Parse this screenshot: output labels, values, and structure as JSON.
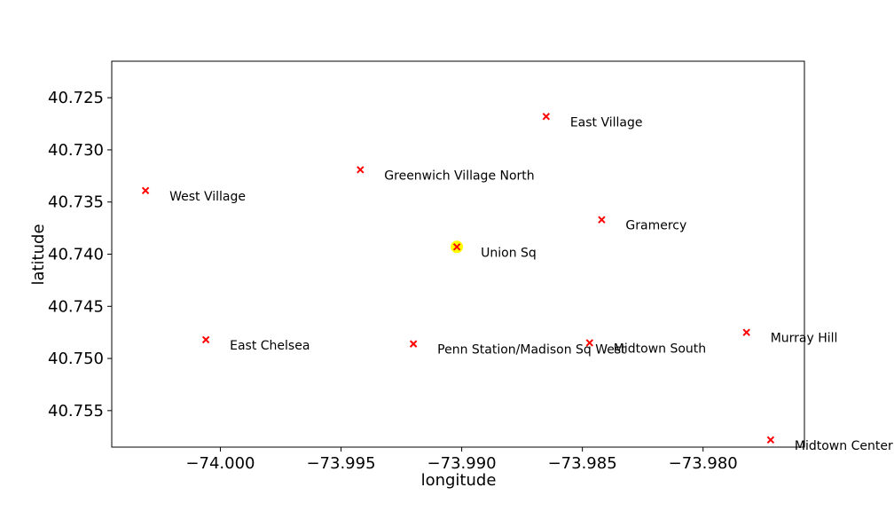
{
  "chart_data": {
    "type": "scatter",
    "title": "",
    "xlabel": "longitude",
    "ylabel": "latitude",
    "xlim": [
      -74.0045,
      -73.9758
    ],
    "ylim": [
      40.7215,
      40.7585
    ],
    "y_inverted": true,
    "grid": false,
    "x_ticks": [
      -74.0,
      -73.995,
      -73.99,
      -73.985,
      -73.98
    ],
    "x_tick_labels": [
      "−74.000",
      "−73.995",
      "−73.990",
      "−73.985",
      "−73.980"
    ],
    "y_ticks": [
      40.725,
      40.73,
      40.735,
      40.74,
      40.745,
      40.75,
      40.755
    ],
    "y_tick_labels": [
      "40.725",
      "40.730",
      "40.735",
      "40.740",
      "40.745",
      "40.750",
      "40.755"
    ],
    "marker_color": "#ff0000",
    "highlight_color": "#ffff00",
    "points": [
      {
        "label": "East Village",
        "x": -73.9865,
        "y": 40.7268
      },
      {
        "label": "Greenwich Village North",
        "x": -73.9942,
        "y": 40.7319
      },
      {
        "label": "West Village",
        "x": -74.0031,
        "y": 40.7339
      },
      {
        "label": "Gramercy",
        "x": -73.9842,
        "y": 40.7367
      },
      {
        "label": "Union Sq",
        "x": -73.9902,
        "y": 40.7393,
        "highlight": true
      },
      {
        "label": "East Chelsea",
        "x": -74.0006,
        "y": 40.7482
      },
      {
        "label": "Penn Station/Madison Sq West",
        "x": -73.992,
        "y": 40.7486
      },
      {
        "label": "Midtown South",
        "x": -73.9847,
        "y": 40.7485
      },
      {
        "label": "Murray Hill",
        "x": -73.9782,
        "y": 40.7475
      },
      {
        "label": "Midtown Center",
        "x": -73.9772,
        "y": 40.7578
      }
    ]
  }
}
